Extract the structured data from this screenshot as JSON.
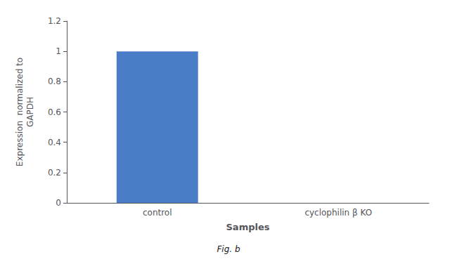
{
  "chart_data": {
    "type": "bar",
    "categories": [
      "control",
      "cyclophilin β KO"
    ],
    "values": [
      1.0,
      0.0
    ],
    "color": "#4a7cc7",
    "xlabel": "Samples",
    "ylabel": "Expression  normalized to\nGAPDH",
    "ylim": [
      0,
      1.2
    ],
    "yticks": [
      0,
      0.2,
      0.4,
      0.6,
      0.8,
      1,
      1.2
    ],
    "annotations": [
      "Fig. b"
    ],
    "grid": false
  }
}
